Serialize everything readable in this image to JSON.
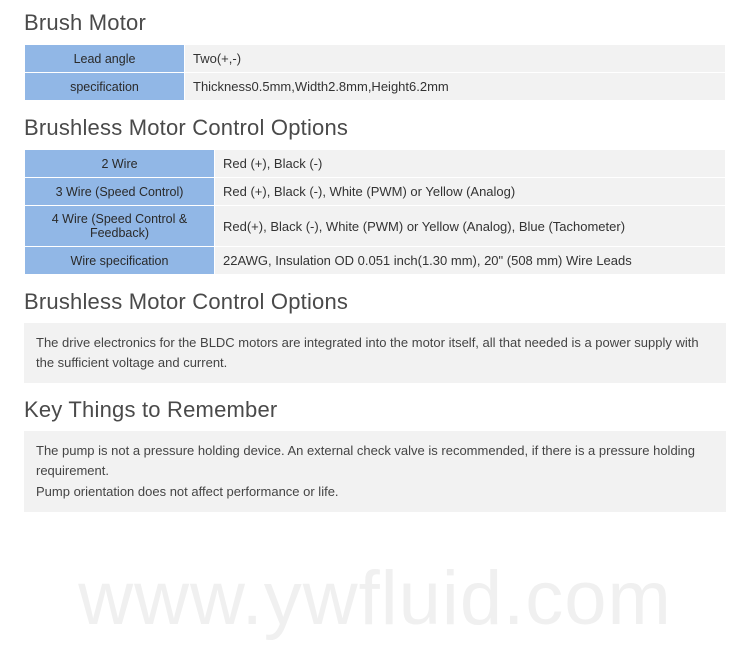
{
  "colors": {
    "header_blue": "#91b7e6",
    "row_gray": "#f2f2f2",
    "title_color": "#4a4a4a",
    "text_color": "#333333",
    "watermark_color": "#f0f0f0",
    "border_color": "#ffffff"
  },
  "sections": {
    "brush_motor": {
      "title": "Brush Motor",
      "rows": [
        {
          "label": "Lead angle",
          "value": "Two(+,-)"
        },
        {
          "label": "specification",
          "value": "Thickness0.5mm,Width2.8mm,Height6.2mm"
        }
      ]
    },
    "brushless_table": {
      "title": "Brushless Motor Control Options",
      "rows": [
        {
          "label": "2 Wire",
          "value": "Red (+), Black (-)"
        },
        {
          "label": "3 Wire (Speed Control)",
          "value": "Red (+), Black (-), White (PWM) or Yellow (Analog)"
        },
        {
          "label": "4 Wire (Speed Control & Feedback)",
          "value": "Red(+), Black (-), White (PWM) or Yellow (Analog), Blue (Tachometer)"
        },
        {
          "label": "Wire specification",
          "value": "22AWG, Insulation OD 0.051 inch(1.30 mm), 20\" (508 mm) Wire Leads"
        }
      ]
    },
    "brushless_text": {
      "title": "Brushless Motor Control Options",
      "body": "The drive electronics for the BLDC motors are integrated into the motor itself, all that needed is a power supply with the sufficient voltage and current."
    },
    "key_things": {
      "title": "Key Things to Remember",
      "body_line1": "The pump is not a pressure holding device. An external check valve is recommended, if there is a pressure holding requirement.",
      "body_line2": "Pump orientation does not affect performance or life."
    }
  },
  "watermark": "www.ywfluid.com"
}
